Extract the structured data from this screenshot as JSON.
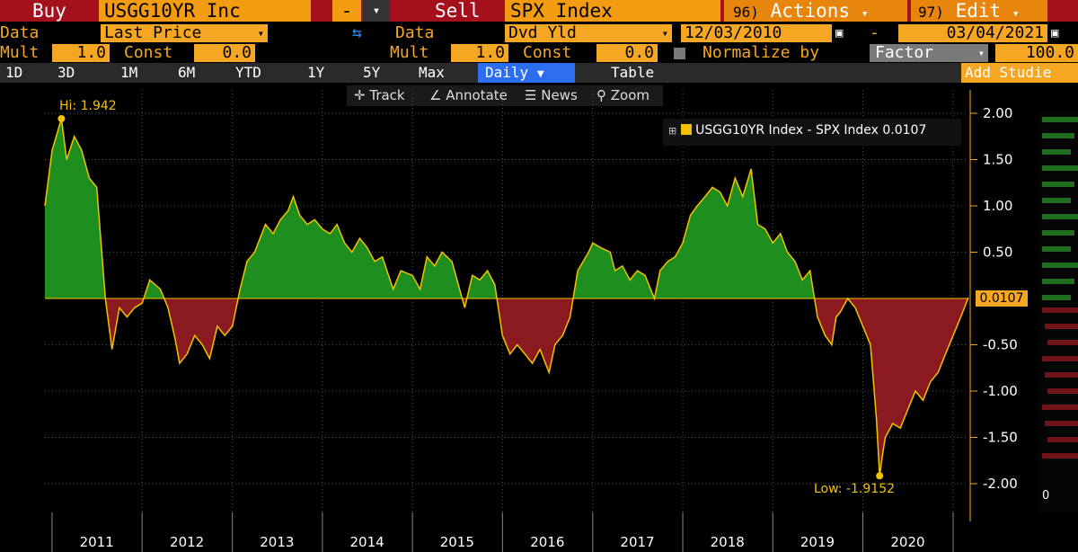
{
  "row1": {
    "buy_label": "Buy",
    "buy_ticker": "USGG10YR Inc",
    "minus_btn": "-",
    "sell_label": "Sell",
    "sell_ticker": "SPX Index",
    "actions_num": "96)",
    "actions_label": "Actions",
    "edit_num": "97)",
    "edit_label": "Edit"
  },
  "row2": {
    "data_label_left": "Data",
    "data_value_left": "Last Price",
    "data_label_right": "Data",
    "data_value_right": "Dvd Yld",
    "start_date": "12/03/2010",
    "date_sep": "-",
    "end_date": "03/04/2021"
  },
  "row3": {
    "mult_label_left": "Mult",
    "mult_value_left": "1.0",
    "const_label_left": "Const",
    "const_value_left": "0.0",
    "mult_label_right": "Mult",
    "mult_value_right": "1.0",
    "const_label_right": "Const",
    "const_value_right": "0.0",
    "normalize_label": "Normalize by",
    "normalize_option": "Factor",
    "normalize_value": "100.0"
  },
  "row4": {
    "periods": [
      "1D",
      "3D",
      "1M",
      "6M",
      "YTD",
      "1Y",
      "5Y",
      "Max"
    ],
    "frequency": "Daily",
    "table_label": "Table",
    "add_studies": "Add Studie"
  },
  "toolbar": {
    "track": "Track",
    "annotate": "Annotate",
    "news": "News",
    "zoom": "Zoom"
  },
  "colors": {
    "positive_fill": "#1e8e1e",
    "negative_fill": "#8b1a20",
    "line": "#f2c200",
    "axis_text": "#ffffff",
    "accent": "#f5a623"
  },
  "chart_data": {
    "type": "area",
    "legend": "USGG10YR Index - SPX Index",
    "last_value": "0.0107",
    "last_value_tag": "0.0107",
    "hi_label": "Hi: 1.942",
    "low_label": "Low: -1.9152",
    "hi": {
      "x": "2011-02-08",
      "y": 1.942
    },
    "low": {
      "x": "2020-03-09",
      "y": -1.9152
    },
    "x_ticks": [
      "2011",
      "2012",
      "2013",
      "2014",
      "2015",
      "2016",
      "2017",
      "2018",
      "2019",
      "2020"
    ],
    "y_ticks": [
      "2.00",
      "1.50",
      "1.00",
      "0.50",
      "-0.50",
      "-1.00",
      "-1.50",
      "-2.00"
    ],
    "ylim": [
      -2.2,
      2.0
    ],
    "xlim": [
      "2010-12-03",
      "2021-03-04"
    ],
    "grid": true,
    "legend_position": "top-right",
    "right_panel_label": "0",
    "x": [
      "2010-12-03",
      "2011-01-01",
      "2011-02-08",
      "2011-03-01",
      "2011-04-01",
      "2011-05-01",
      "2011-06-01",
      "2011-07-01",
      "2011-08-05",
      "2011-09-01",
      "2011-10-01",
      "2011-11-01",
      "2011-12-01",
      "2012-01-01",
      "2012-02-01",
      "2012-03-15",
      "2012-04-15",
      "2012-05-15",
      "2012-06-01",
      "2012-07-01",
      "2012-08-01",
      "2012-09-01",
      "2012-10-01",
      "2012-11-01",
      "2012-12-01",
      "2013-01-01",
      "2013-02-01",
      "2013-03-01",
      "2013-04-01",
      "2013-05-15",
      "2013-06-15",
      "2013-07-15",
      "2013-08-15",
      "2013-09-05",
      "2013-10-01",
      "2013-11-01",
      "2013-12-01",
      "2014-01-01",
      "2014-02-01",
      "2014-03-01",
      "2014-04-01",
      "2014-05-01",
      "2014-06-01",
      "2014-07-01",
      "2014-08-01",
      "2014-09-01",
      "2014-10-15",
      "2014-11-15",
      "2015-01-01",
      "2015-02-01",
      "2015-03-01",
      "2015-04-01",
      "2015-05-01",
      "2015-06-10",
      "2015-07-01",
      "2015-08-01",
      "2015-09-01",
      "2015-10-01",
      "2015-11-01",
      "2015-12-01",
      "2016-01-01",
      "2016-02-01",
      "2016-03-01",
      "2016-04-01",
      "2016-05-01",
      "2016-06-01",
      "2016-07-08",
      "2016-08-01",
      "2016-09-01",
      "2016-10-01",
      "2016-11-01",
      "2016-12-15",
      "2017-01-01",
      "2017-02-01",
      "2017-03-13",
      "2017-04-01",
      "2017-05-01",
      "2017-06-01",
      "2017-07-01",
      "2017-08-01",
      "2017-09-08",
      "2017-10-01",
      "2017-11-01",
      "2017-12-01",
      "2018-01-01",
      "2018-02-01",
      "2018-03-01",
      "2018-04-01",
      "2018-05-01",
      "2018-06-01",
      "2018-07-01",
      "2018-08-01",
      "2018-09-01",
      "2018-10-05",
      "2018-11-01",
      "2018-12-01",
      "2019-01-01",
      "2019-02-01",
      "2019-03-01",
      "2019-04-01",
      "2019-05-01",
      "2019-06-01",
      "2019-07-01",
      "2019-08-01",
      "2019-08-28",
      "2019-09-15",
      "2019-10-01",
      "2019-11-01",
      "2019-12-01",
      "2020-01-01",
      "2020-02-01",
      "2020-02-25",
      "2020-03-09",
      "2020-03-20",
      "2020-04-01",
      "2020-05-01",
      "2020-06-01",
      "2020-07-01",
      "2020-08-01",
      "2020-09-01",
      "2020-10-01",
      "2020-11-01",
      "2020-12-01",
      "2021-01-01",
      "2021-02-01",
      "2021-03-04"
    ],
    "values": [
      1.0,
      1.6,
      1.942,
      1.5,
      1.75,
      1.6,
      1.3,
      1.2,
      0.0,
      -0.55,
      -0.1,
      -0.2,
      -0.1,
      -0.05,
      0.2,
      0.1,
      -0.1,
      -0.45,
      -0.7,
      -0.6,
      -0.4,
      -0.5,
      -0.65,
      -0.3,
      -0.4,
      -0.3,
      0.1,
      0.4,
      0.5,
      0.8,
      0.7,
      0.85,
      0.95,
      1.1,
      0.9,
      0.8,
      0.85,
      0.75,
      0.7,
      0.8,
      0.6,
      0.5,
      0.65,
      0.55,
      0.4,
      0.45,
      0.1,
      0.3,
      0.25,
      0.1,
      0.45,
      0.35,
      0.5,
      0.4,
      0.2,
      -0.1,
      0.25,
      0.2,
      0.3,
      0.15,
      -0.4,
      -0.6,
      -0.5,
      -0.6,
      -0.7,
      -0.55,
      -0.8,
      -0.5,
      -0.4,
      -0.2,
      0.3,
      0.5,
      0.6,
      0.55,
      0.5,
      0.3,
      0.35,
      0.2,
      0.3,
      0.25,
      0.0,
      0.3,
      0.4,
      0.45,
      0.6,
      0.9,
      1.0,
      1.1,
      1.2,
      1.15,
      1.0,
      1.3,
      1.1,
      1.4,
      0.8,
      0.75,
      0.6,
      0.7,
      0.5,
      0.4,
      0.2,
      0.3,
      -0.2,
      -0.4,
      -0.5,
      -0.2,
      -0.15,
      0.0,
      -0.1,
      -0.3,
      -0.5,
      -1.3,
      -1.9152,
      -1.7,
      -1.5,
      -1.35,
      -1.4,
      -1.2,
      -1.0,
      -1.1,
      -0.9,
      -0.8,
      -0.6,
      -0.4,
      -0.2,
      0.0107
    ]
  }
}
